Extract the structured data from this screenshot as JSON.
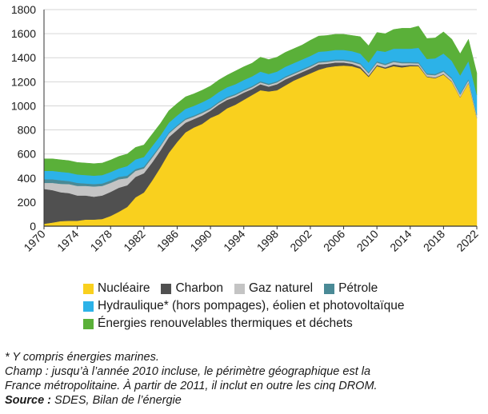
{
  "chart_data": {
    "type": "area",
    "stacked": true,
    "title": "",
    "xlabel": "",
    "ylabel": "",
    "ylim": [
      0,
      1800
    ],
    "yticks": [
      0,
      200,
      400,
      600,
      800,
      1000,
      1200,
      1400,
      1600,
      1800
    ],
    "xticks": [
      1970,
      1974,
      1978,
      1982,
      1986,
      1990,
      1994,
      1998,
      2002,
      2006,
      2010,
      2014,
      2018,
      2022
    ],
    "grid": "horizontal",
    "legend_position": "bottom",
    "x": [
      1970,
      1971,
      1972,
      1973,
      1974,
      1975,
      1976,
      1977,
      1978,
      1979,
      1980,
      1981,
      1982,
      1983,
      1984,
      1985,
      1986,
      1987,
      1988,
      1989,
      1990,
      1991,
      1992,
      1993,
      1994,
      1995,
      1996,
      1997,
      1998,
      1999,
      2000,
      2001,
      2002,
      2003,
      2004,
      2005,
      2006,
      2007,
      2008,
      2009,
      2010,
      2011,
      2012,
      2013,
      2014,
      2015,
      2016,
      2017,
      2018,
      2019,
      2020,
      2021,
      2022
    ],
    "series": [
      {
        "name": "Nucléaire",
        "color": "#f9d01e",
        "values": [
          20,
          30,
          42,
          45,
          45,
          55,
          55,
          60,
          85,
          120,
          160,
          240,
          280,
          380,
          490,
          610,
          700,
          780,
          820,
          850,
          900,
          930,
          980,
          1010,
          1050,
          1090,
          1130,
          1120,
          1130,
          1170,
          1210,
          1240,
          1270,
          1300,
          1320,
          1330,
          1335,
          1330,
          1310,
          1240,
          1330,
          1310,
          1330,
          1320,
          1330,
          1330,
          1240,
          1230,
          1260,
          1200,
          1070,
          1190,
          900
        ]
      },
      {
        "name": "Charbon",
        "color": "#505050",
        "values": [
          290,
          270,
          240,
          230,
          210,
          200,
          190,
          195,
          200,
          200,
          180,
          170,
          160,
          150,
          140,
          130,
          100,
          80,
          70,
          70,
          60,
          80,
          70,
          65,
          60,
          50,
          50,
          40,
          50,
          50,
          40,
          40,
          40,
          45,
          30,
          30,
          25,
          20,
          15,
          10,
          10,
          10,
          15,
          15,
          10,
          8,
          5,
          5,
          5,
          4,
          3,
          3,
          2
        ]
      },
      {
        "name": "Gaz naturel",
        "color": "#c4c4c4",
        "values": [
          50,
          60,
          70,
          75,
          80,
          80,
          85,
          80,
          75,
          70,
          60,
          50,
          40,
          40,
          35,
          30,
          30,
          25,
          20,
          20,
          15,
          15,
          15,
          15,
          15,
          15,
          15,
          15,
          15,
          15,
          15,
          15,
          15,
          15,
          15,
          15,
          15,
          15,
          20,
          20,
          20,
          20,
          20,
          20,
          15,
          15,
          15,
          20,
          20,
          20,
          20,
          20,
          20
        ]
      },
      {
        "name": "Pétrole",
        "color": "#4a8a96",
        "values": [
          30,
          30,
          30,
          25,
          25,
          20,
          20,
          20,
          20,
          20,
          20,
          15,
          15,
          15,
          10,
          10,
          10,
          10,
          10,
          10,
          10,
          10,
          10,
          10,
          10,
          10,
          10,
          10,
          10,
          10,
          10,
          10,
          10,
          10,
          10,
          10,
          10,
          10,
          10,
          10,
          10,
          10,
          10,
          10,
          10,
          10,
          10,
          10,
          10,
          10,
          10,
          10,
          10
        ]
      },
      {
        "name": "Hydraulique* (hors pompages), éolien et photovoltaïque",
        "color": "#2cb2e8",
        "values": [
          70,
          70,
          70,
          70,
          70,
          70,
          70,
          70,
          70,
          70,
          80,
          80,
          80,
          80,
          80,
          80,
          80,
          80,
          80,
          80,
          80,
          80,
          80,
          80,
          80,
          80,
          80,
          80,
          80,
          80,
          80,
          80,
          80,
          80,
          80,
          80,
          80,
          80,
          80,
          80,
          90,
          100,
          100,
          110,
          110,
          120,
          120,
          130,
          140,
          140,
          150,
          150,
          160
        ]
      },
      {
        "name": "Énergies renouvelables thermiques et déchets",
        "color": "#5ab039",
        "values": [
          100,
          100,
          100,
          100,
          100,
          100,
          100,
          100,
          100,
          100,
          100,
          100,
          100,
          100,
          100,
          100,
          100,
          100,
          100,
          100,
          100,
          100,
          100,
          110,
          110,
          110,
          120,
          120,
          120,
          120,
          120,
          120,
          130,
          130,
          130,
          130,
          130,
          130,
          140,
          140,
          150,
          150,
          160,
          170,
          170,
          180,
          170,
          170,
          180,
          180,
          180,
          180,
          180
        ]
      }
    ]
  },
  "notes": {
    "footnote": "* Y compris énergies marines.",
    "scope_line1": "Champ : jusqu’à l’année 2010 incluse, le périmètre géographique est la",
    "scope_line2": "France métropolitaine. À partir de 2011, il inclut en outre les cinq DROM.",
    "source_label": "Source :",
    "source_text": " SDES, Bilan de l’énergie"
  }
}
